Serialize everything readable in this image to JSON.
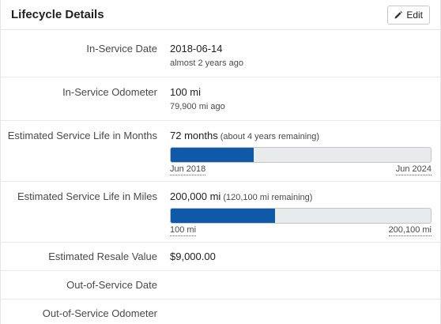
{
  "header": {
    "title": "Lifecycle Details",
    "edit_label": "Edit"
  },
  "rows": {
    "in_service_date": {
      "label": "In-Service Date",
      "value": "2018-06-14",
      "sub": "almost 2 years ago"
    },
    "in_service_odometer": {
      "label": "In-Service Odometer",
      "value": "100 mi",
      "sub": "79,900 mi ago"
    },
    "service_life_months": {
      "label": "Estimated Service Life in Months",
      "value": "72 months",
      "note": "(about 4 years remaining)",
      "progress": 0.32,
      "start_label": "Jun 2018",
      "end_label": "Jun 2024"
    },
    "service_life_miles": {
      "label": "Estimated Service Life in Miles",
      "value": "200,000 mi",
      "note": "(120,100 mi remaining)",
      "progress": 0.4,
      "start_label": "100 mi",
      "end_label": "200,100 mi"
    },
    "resale_value": {
      "label": "Estimated Resale Value",
      "value": "$9,000.00"
    },
    "out_of_service_date": {
      "label": "Out-of-Service Date",
      "value": ""
    },
    "out_of_service_odometer": {
      "label": "Out-of-Service Odometer",
      "value": ""
    }
  },
  "colors": {
    "progress_fill": "#0f5aa8",
    "progress_track": "#e8ebec"
  },
  "icons": {
    "edit": "pencil-icon"
  }
}
